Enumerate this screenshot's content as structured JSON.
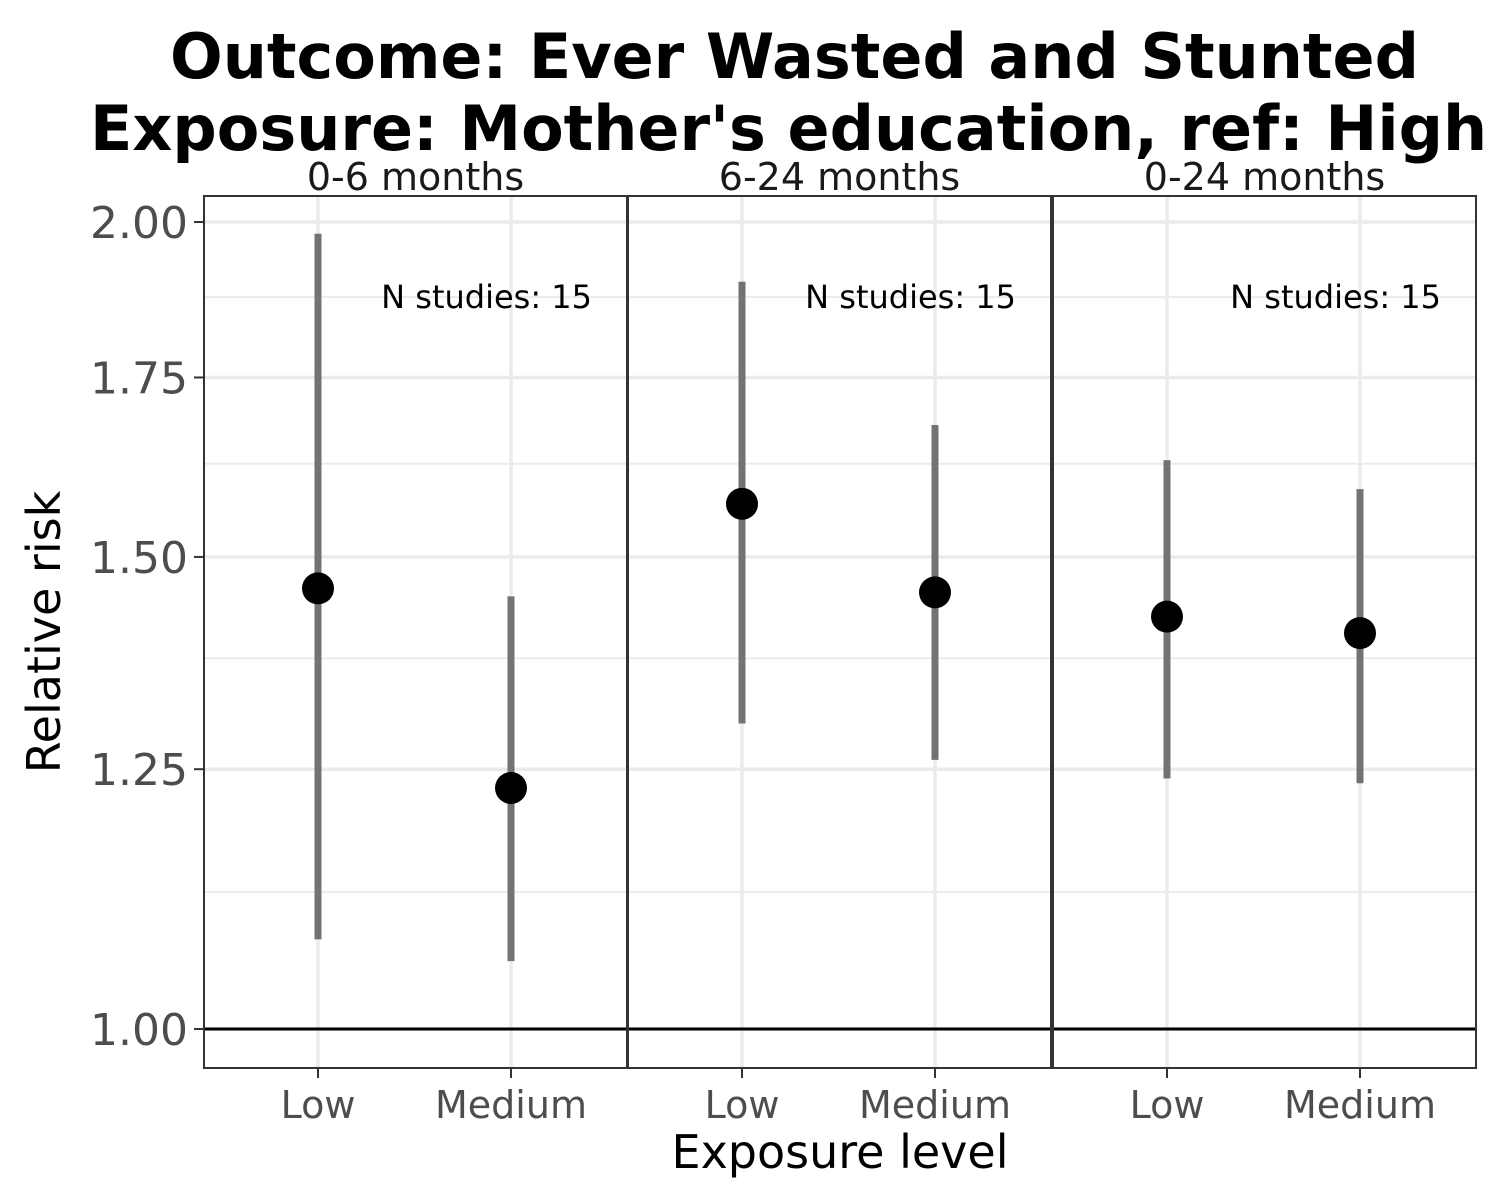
{
  "chart_data": {
    "type": "scatter",
    "title_line1": "Outcome: Ever Wasted and Stunted",
    "title_line2": "Exposure: Mother's education, ref: High",
    "xlabel": "Exposure level",
    "ylabel": "Relative risk",
    "y_scale": "log",
    "ylim": [
      0.95,
      2.03
    ],
    "y_ticks": [
      1.0,
      1.25,
      1.5,
      1.75,
      2.0
    ],
    "y_tick_labels": [
      "1.00",
      "1.25",
      "1.50",
      "1.75",
      "2.00"
    ],
    "y_minor_ticks": [
      1.125,
      1.375,
      1.625,
      1.875
    ],
    "reference_line": 1.0,
    "categories": [
      "Low",
      "Medium"
    ],
    "grid": true,
    "panels": [
      {
        "label": "0-6 months",
        "annotation": "N studies: 15",
        "points": [
          {
            "category": "Low",
            "estimate": 1.46,
            "ci_lower": 1.08,
            "ci_upper": 1.98
          },
          {
            "category": "Medium",
            "estimate": 1.23,
            "ci_lower": 1.06,
            "ci_upper": 1.45
          }
        ]
      },
      {
        "label": "6-24 months",
        "annotation": "N studies: 15",
        "points": [
          {
            "category": "Low",
            "estimate": 1.57,
            "ci_lower": 1.3,
            "ci_upper": 1.9
          },
          {
            "category": "Medium",
            "estimate": 1.455,
            "ci_lower": 1.26,
            "ci_upper": 1.68
          }
        ]
      },
      {
        "label": "0-24 months",
        "annotation": "N studies: 15",
        "points": [
          {
            "category": "Low",
            "estimate": 1.425,
            "ci_lower": 1.24,
            "ci_upper": 1.63
          },
          {
            "category": "Medium",
            "estimate": 1.405,
            "ci_lower": 1.235,
            "ci_upper": 1.59
          }
        ]
      }
    ]
  }
}
